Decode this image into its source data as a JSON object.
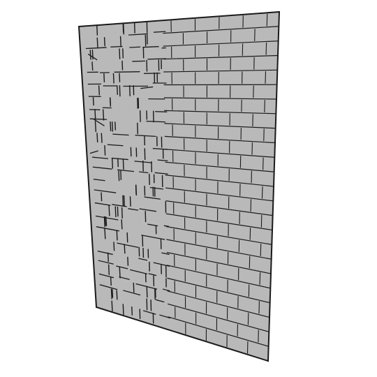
{
  "figure": {
    "subject": "brick-wall-panel",
    "panel_fill": "#b9b9b9",
    "line_color": "#1a1a1a",
    "background": "#ffffff"
  }
}
